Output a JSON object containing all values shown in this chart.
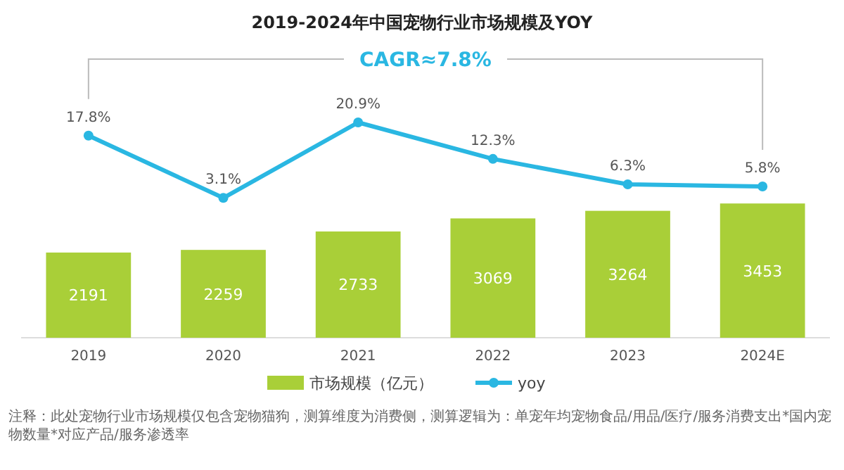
{
  "chart_data": [
    {
      "type": "bar",
      "categories": [
        "2019",
        "2020",
        "2021",
        "2022",
        "2023",
        "2024E"
      ],
      "series": [
        {
          "name": "市场规模（亿元）",
          "color": "#a9cf38",
          "values": [
            2191,
            2259,
            2733,
            3069,
            3264,
            3453
          ],
          "value_labels": [
            "2191",
            "2259",
            "2733",
            "3069",
            "3264",
            "3453"
          ]
        }
      ],
      "legend": "bottom",
      "annotations": [
        "注释：此处宠物行业市场规模仅包含宠物猫狗，测算维度为消费侧，测算逻辑为：单宠年均宠物食品/用品/医疗/服务消费支出*国内宠物数量*对应产品/服务渗透率"
      ]
    },
    {
      "type": "line",
      "title": "2019-2024年中国宠物行业市场规模及YOY",
      "categories": [
        null,
        null,
        null,
        null,
        null,
        null
      ],
      "series": [
        {
          "name": "yoy",
          "color": "#2ab7e2",
          "values": [
            17.8,
            3.1,
            20.9,
            12.3,
            6.3,
            5.8
          ],
          "value_labels": [
            "17.8%",
            "3.1%",
            "20.9%",
            "12.3%",
            "6.3%",
            "5.8%"
          ]
        }
      ],
      "marker": "circle",
      "legend": "bottom",
      "annotations": [
        "CAGR≈7.8%"
      ]
    }
  ]
}
